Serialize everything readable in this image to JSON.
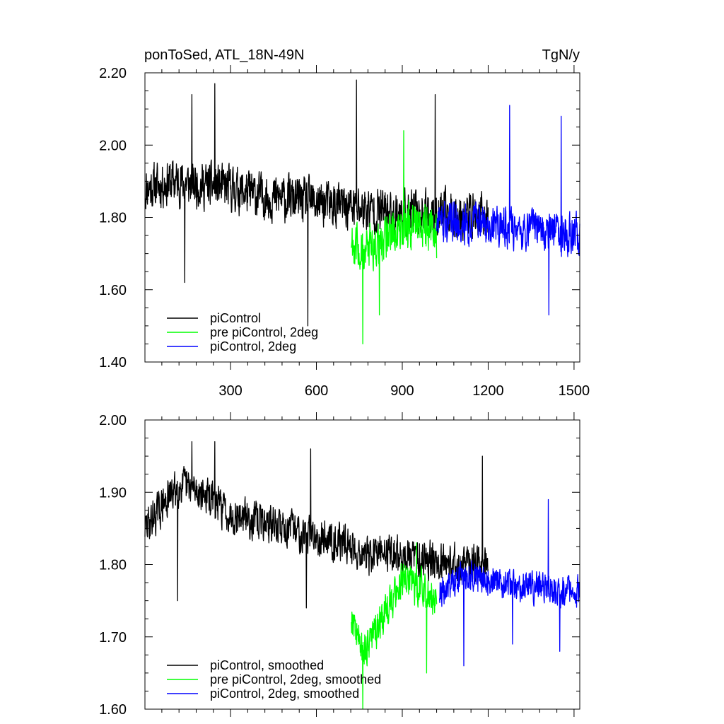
{
  "colors": {
    "piControl": "#000000",
    "pre_piControl_2deg": "#00ff00",
    "piControl_2deg": "#0000ff"
  },
  "chart_data": [
    {
      "type": "line",
      "title": "ponToSed, ATL_18N-49N",
      "units": "TgN/y",
      "xlabel": "",
      "ylabel": "",
      "xlim": [
        1,
        1520
      ],
      "ylim": [
        1.4,
        2.2
      ],
      "x_ticks": [
        300,
        600,
        900,
        1200,
        1500
      ],
      "x_tick_labels": [
        "300",
        "600",
        "900",
        "1200",
        "1500"
      ],
      "y_ticks": [
        1.4,
        1.6,
        1.8,
        2.0,
        2.2
      ],
      "y_tick_labels": [
        "1.40",
        "1.60",
        "1.80",
        "2.00",
        "2.20"
      ],
      "legend_position": "bottom-left",
      "grid": false,
      "series": [
        {
          "name": "piControl",
          "color": "#000000",
          "x_range": [
            1,
            1200
          ],
          "control_points": [
            [
              1,
              1.88
            ],
            [
              100,
              1.9
            ],
            [
              200,
              1.89
            ],
            [
              300,
              1.88
            ],
            [
              400,
              1.86
            ],
            [
              500,
              1.85
            ],
            [
              600,
              1.84
            ],
            [
              700,
              1.83
            ],
            [
              800,
              1.82
            ],
            [
              900,
              1.81
            ],
            [
              1000,
              1.81
            ],
            [
              1100,
              1.81
            ],
            [
              1200,
              1.8
            ]
          ],
          "noise_amplitude": 0.085,
          "extremes": [
            [
              570,
              1.5
            ],
            [
              740,
              2.18
            ],
            [
              245,
              2.17
            ],
            [
              165,
              2.14
            ],
            [
              140,
              1.62
            ],
            [
              1015,
              2.14
            ]
          ]
        },
        {
          "name": "pre piControl, 2deg",
          "color": "#00ff00",
          "x_range": [
            722,
            1020
          ],
          "control_points": [
            [
              722,
              1.74
            ],
            [
              760,
              1.7
            ],
            [
              800,
              1.72
            ],
            [
              850,
              1.75
            ],
            [
              900,
              1.77
            ],
            [
              950,
              1.78
            ],
            [
              1000,
              1.77
            ],
            [
              1020,
              1.74
            ]
          ],
          "noise_amplitude": 0.085,
          "extremes": [
            [
              762,
              1.45
            ],
            [
              905,
              2.04
            ],
            [
              820,
              1.53
            ]
          ]
        },
        {
          "name": "piControl, 2deg",
          "color": "#0000ff",
          "x_range": [
            1020,
            1520
          ],
          "control_points": [
            [
              1020,
              1.78
            ],
            [
              1100,
              1.79
            ],
            [
              1200,
              1.78
            ],
            [
              1300,
              1.77
            ],
            [
              1400,
              1.76
            ],
            [
              1520,
              1.75
            ]
          ],
          "noise_amplitude": 0.075,
          "extremes": [
            [
              1275,
              2.11
            ],
            [
              1455,
              2.08
            ],
            [
              1412,
              1.53
            ]
          ]
        }
      ]
    },
    {
      "type": "line",
      "title": "",
      "units": "",
      "xlabel": "",
      "ylabel": "",
      "xlim": [
        1,
        1520
      ],
      "ylim": [
        1.6,
        2.0
      ],
      "x_ticks": [
        300,
        600,
        900,
        1200,
        1500
      ],
      "x_tick_labels": [],
      "y_ticks": [
        1.6,
        1.7,
        1.8,
        1.9,
        2.0
      ],
      "y_tick_labels": [
        "1.60",
        "1.70",
        "1.80",
        "1.90",
        "2.00"
      ],
      "legend_position": "bottom-left",
      "grid": false,
      "series": [
        {
          "name": "piControl, smoothed",
          "color": "#000000",
          "x_range": [
            1,
            1200
          ],
          "control_points": [
            [
              1,
              1.85
            ],
            [
              60,
              1.88
            ],
            [
              120,
              1.91
            ],
            [
              200,
              1.9
            ],
            [
              300,
              1.87
            ],
            [
              400,
              1.86
            ],
            [
              500,
              1.85
            ],
            [
              600,
              1.84
            ],
            [
              700,
              1.83
            ],
            [
              780,
              1.81
            ],
            [
              850,
              1.82
            ],
            [
              900,
              1.81
            ],
            [
              1000,
              1.81
            ],
            [
              1100,
              1.8
            ],
            [
              1200,
              1.8
            ]
          ],
          "noise_amplitude": 0.035,
          "extremes": [
            [
              245,
              1.97
            ],
            [
              165,
              1.97
            ],
            [
              580,
              1.96
            ],
            [
              115,
              1.75
            ],
            [
              1180,
              1.95
            ],
            [
              565,
              1.74
            ]
          ]
        },
        {
          "name": "pre piControl, 2deg, smoothed",
          "color": "#00ff00",
          "x_range": [
            722,
            1020
          ],
          "control_points": [
            [
              722,
              1.73
            ],
            [
              760,
              1.68
            ],
            [
              800,
              1.7
            ],
            [
              850,
              1.74
            ],
            [
              900,
              1.78
            ],
            [
              950,
              1.77
            ],
            [
              1000,
              1.76
            ],
            [
              1020,
              1.75
            ]
          ],
          "noise_amplitude": 0.035,
          "extremes": [
            [
              762,
              1.6
            ],
            [
              985,
              1.65
            ],
            [
              950,
              1.83
            ]
          ]
        },
        {
          "name": "piControl, 2deg, smoothed",
          "color": "#0000ff",
          "x_range": [
            1030,
            1520
          ],
          "control_points": [
            [
              1030,
              1.76
            ],
            [
              1100,
              1.78
            ],
            [
              1200,
              1.78
            ],
            [
              1300,
              1.77
            ],
            [
              1400,
              1.77
            ],
            [
              1520,
              1.76
            ]
          ],
          "noise_amplitude": 0.03,
          "extremes": [
            [
              1410,
              1.89
            ],
            [
              1115,
              1.66
            ],
            [
              1450,
              1.68
            ],
            [
              1285,
              1.69
            ]
          ]
        }
      ]
    }
  ]
}
